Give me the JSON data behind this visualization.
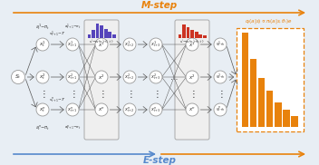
{
  "bg_color": "#e8eef4",
  "mstep_color": "#e8820c",
  "estep_color": "#5588cc",
  "arrow_color_top": "#e8820c",
  "arrow_color_bottom_blue": "#5588cc",
  "arrow_color_bottom_orange": "#e8820c",
  "node_fc": "white",
  "node_ec": "#999999",
  "purple_hist": [
    0.25,
    0.55,
    1.0,
    0.85,
    0.65,
    0.45,
    0.28
  ],
  "red_hist": [
    0.28,
    0.95,
    0.78,
    0.58,
    0.42,
    0.28,
    0.2
  ],
  "orange_hist": [
    1.0,
    0.72,
    0.52,
    0.38,
    0.26,
    0.18,
    0.12
  ],
  "purple_color": "#5544bb",
  "red_color": "#cc3322",
  "orange_color": "#e8820c",
  "fig_width": 3.52,
  "fig_height": 1.82,
  "dpi": 100
}
